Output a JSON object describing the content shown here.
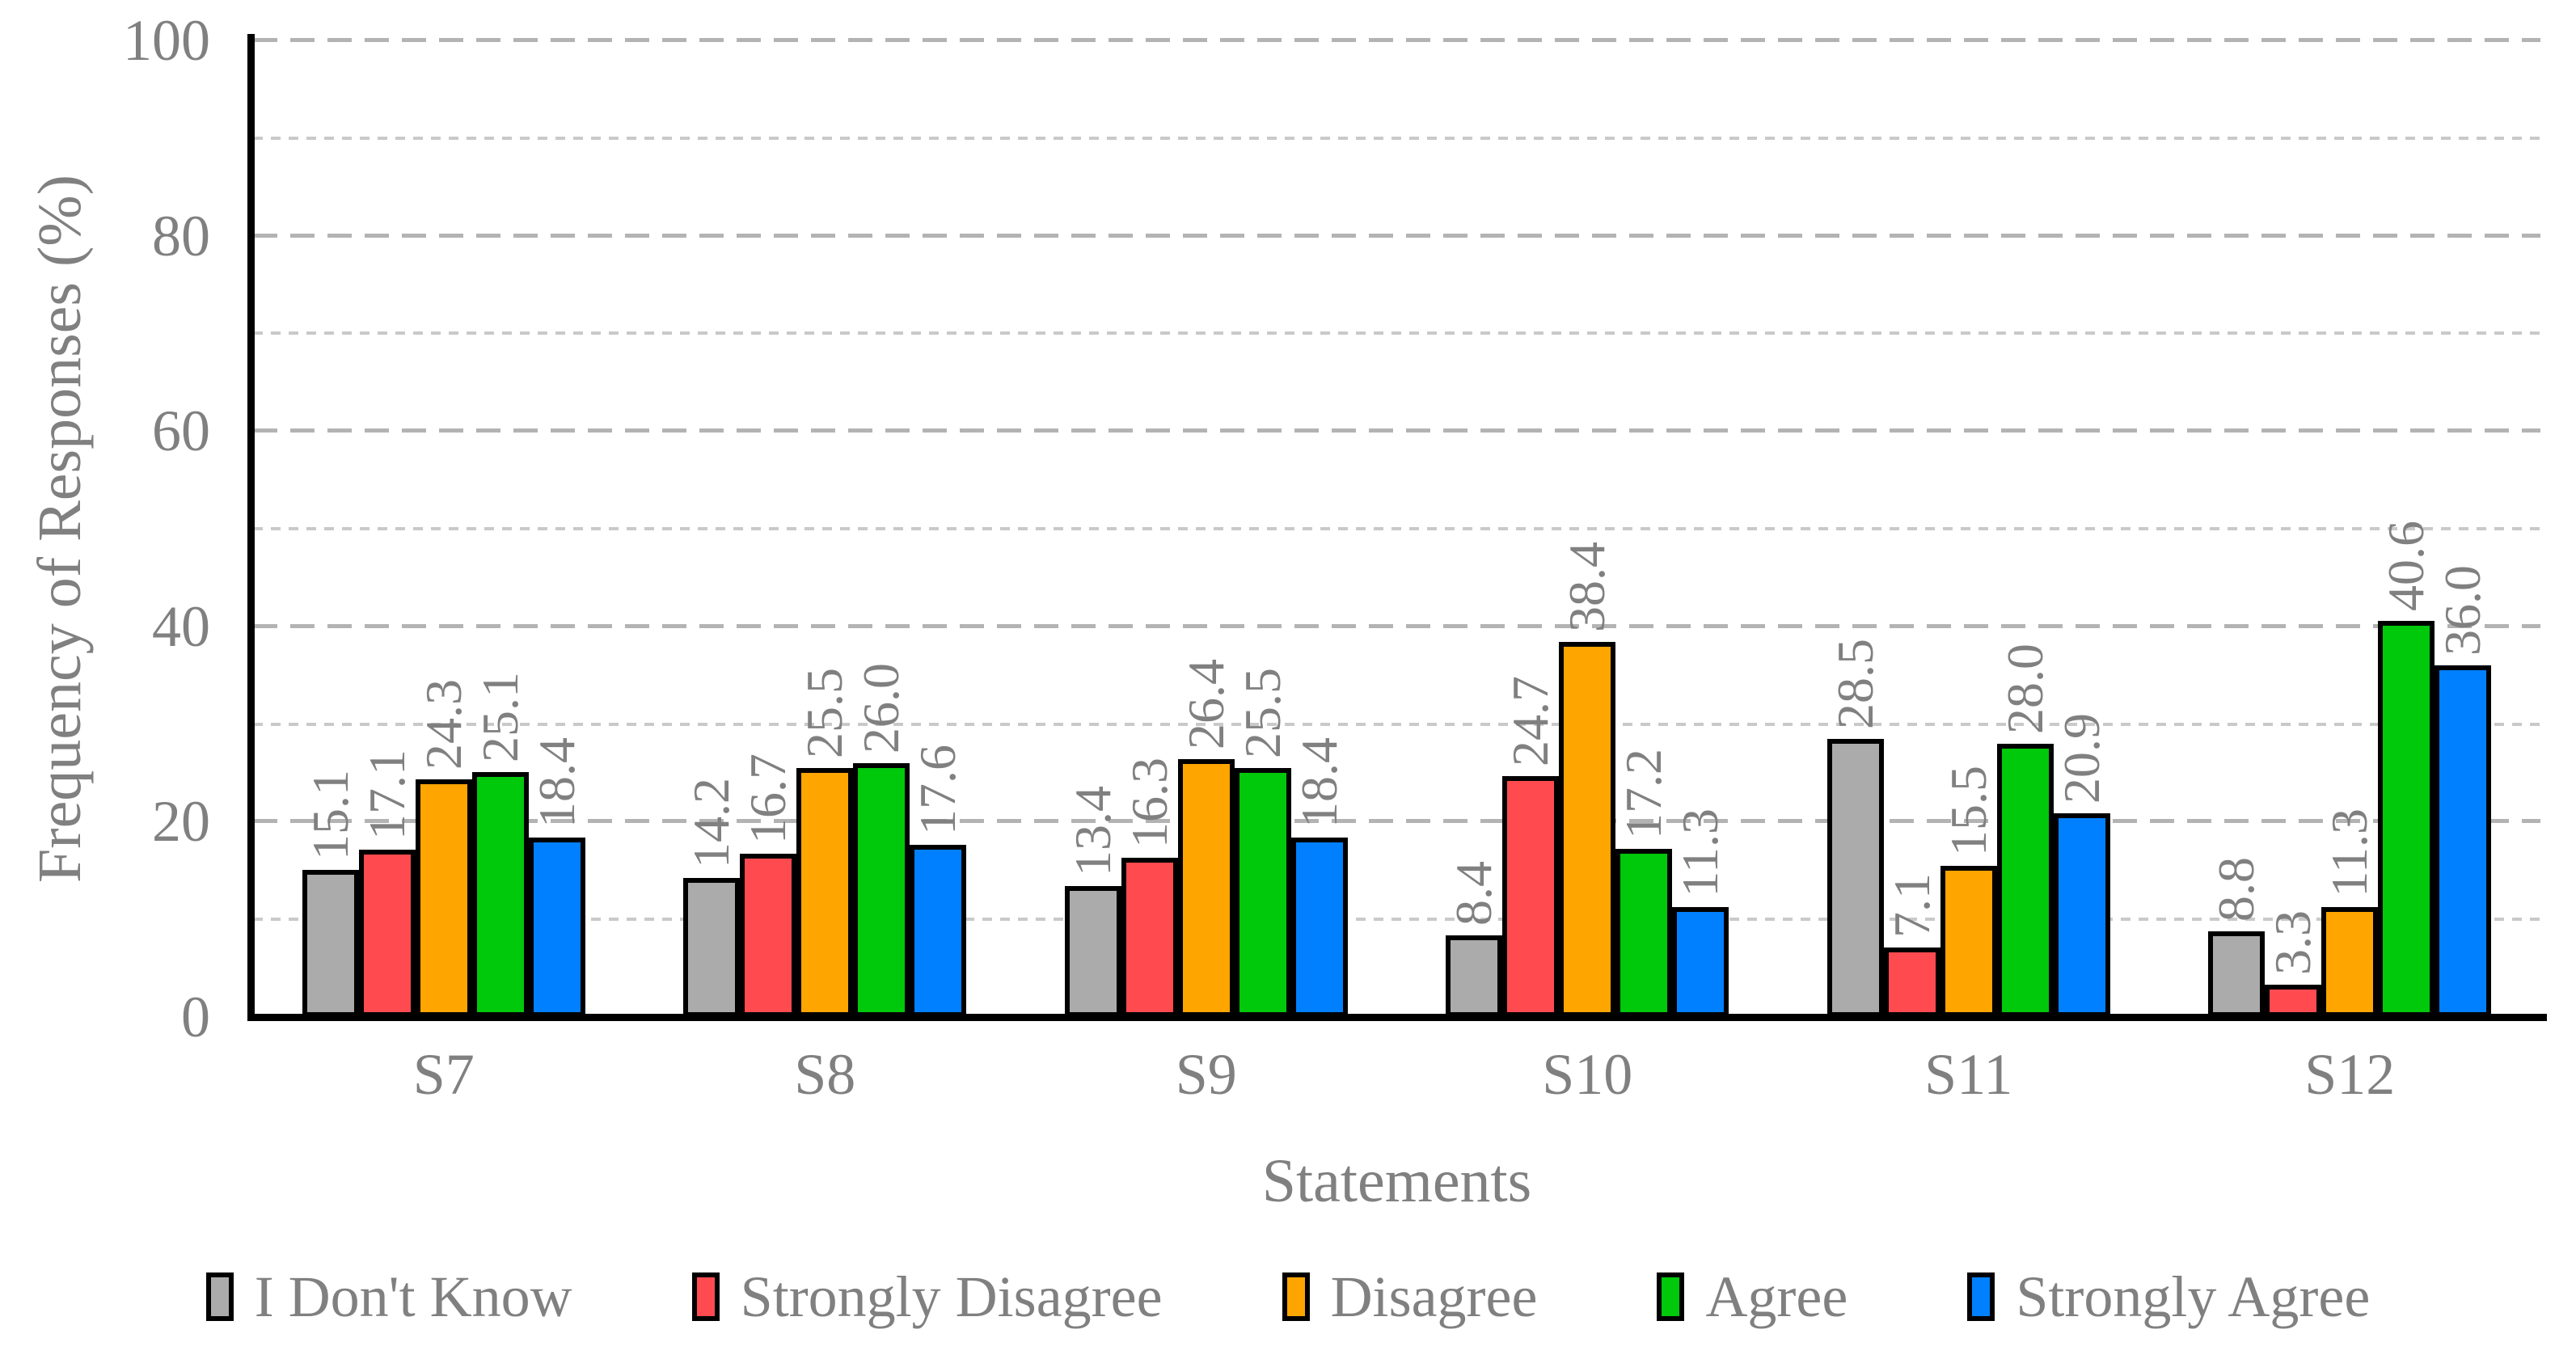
{
  "chart_data": {
    "type": "bar",
    "title": "",
    "xlabel": "Statements",
    "ylabel": "Frequency of Responses (%)",
    "categories": [
      "S7",
      "S8",
      "S9",
      "S10",
      "S11",
      "S12"
    ],
    "series": [
      {
        "name": "I Don't Know",
        "color": "#ABABAB",
        "values": [
          15.1,
          14.2,
          13.4,
          8.4,
          28.5,
          8.8
        ],
        "labels": [
          "15.1",
          "14.2",
          "13.4",
          "8.4",
          "28.5",
          "8.8"
        ]
      },
      {
        "name": "Strongly Disagree",
        "color": "#FF4B50",
        "values": [
          17.1,
          16.7,
          16.3,
          24.7,
          7.1,
          3.3
        ],
        "labels": [
          "17.1",
          "16.7",
          "16.3",
          "24.7",
          "7.1",
          "3.3"
        ]
      },
      {
        "name": "Disagree",
        "color": "#FFA500",
        "values": [
          24.3,
          25.5,
          26.4,
          38.4,
          15.5,
          11.3
        ],
        "labels": [
          "24.3",
          "25.5",
          "26.4",
          "38.4",
          "15.5",
          "11.3"
        ]
      },
      {
        "name": "Agree",
        "color": "#00C80A",
        "values": [
          25.1,
          26.0,
          25.5,
          17.2,
          28.0,
          40.6
        ],
        "labels": [
          "25.1",
          "26.0",
          "25.5",
          "17.2",
          "28.0",
          "40.6"
        ]
      },
      {
        "name": "Strongly Agree",
        "color": "#0080FF",
        "values": [
          18.4,
          17.6,
          18.4,
          11.3,
          20.9,
          36.0
        ],
        "labels": [
          "18.4",
          "17.6",
          "18.4",
          "11.3",
          "20.9",
          "36.0"
        ]
      }
    ],
    "ylim": [
      0,
      100
    ],
    "yticks": [
      0,
      20,
      40,
      60,
      80,
      100
    ],
    "grid": {
      "major_every": 20,
      "minor_every": 10,
      "major_style": "dashed",
      "minor_style": "dotted"
    },
    "legend_position": "bottom",
    "data_labels": "rotated-90-one-decimal"
  },
  "colors": {
    "text": "#808080",
    "axis": "#000000",
    "grid_major": "#B3B3B3",
    "grid_minor": "#C9C9C9",
    "background": "#FFFFFF"
  }
}
